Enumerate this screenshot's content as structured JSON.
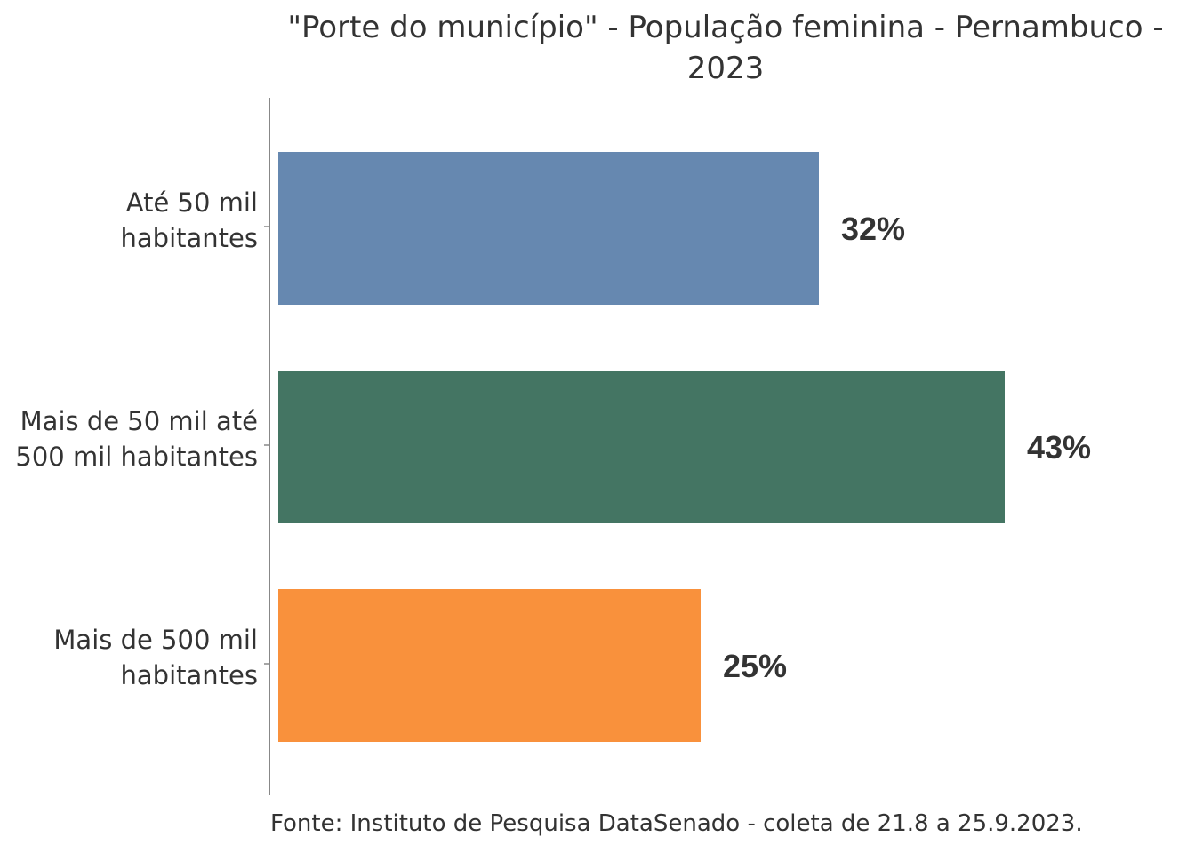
{
  "chart_data": {
    "type": "bar",
    "orientation": "horizontal",
    "title_lines": [
      "\"Porte do município\" - População feminina - Pernambuco -",
      "2023"
    ],
    "categories": [
      [
        "Até 50 mil",
        "habitantes"
      ],
      [
        "Mais de 50 mil até",
        "500 mil habitantes"
      ],
      [
        "Mais de 500 mil",
        "habitantes"
      ]
    ],
    "values": [
      32,
      43,
      25
    ],
    "value_labels": [
      "32%",
      "43%",
      "25%"
    ],
    "colors": [
      "#6688B0",
      "#447563",
      "#F9913C"
    ],
    "xlim": [
      0,
      50
    ],
    "grid": false,
    "legend": "none",
    "source": "Fonte: Instituto de Pesquisa DataSenado - coleta de 21.8 a 25.9.2023."
  }
}
